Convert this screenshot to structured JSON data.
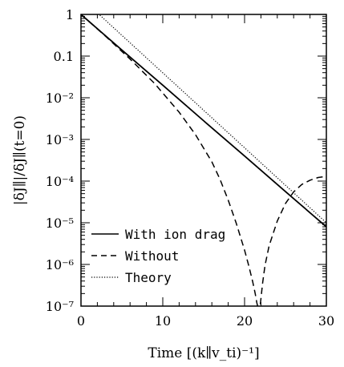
{
  "chart_data": {
    "type": "line",
    "xlabel": "Time [(k∥v_ti)⁻¹]",
    "ylabel": "|δJ∥|/δJ∥(t=0)",
    "yscale": "log",
    "xlim": [
      0,
      30
    ],
    "ylim": [
      1e-07,
      1
    ],
    "x_ticks": [
      "0",
      "10",
      "20",
      "30"
    ],
    "y_ticks": [
      "10⁻⁷",
      "10⁻⁶",
      "10⁻⁵",
      "10⁻⁴",
      "10⁻³",
      "10⁻²",
      "0.1",
      "1"
    ],
    "legend_position": "bottom-left",
    "series": [
      {
        "name": "With ion drag",
        "style": "solid",
        "x": [
          0,
          5,
          10,
          15,
          20,
          25,
          30
        ],
        "y": [
          1,
          0.14,
          0.02,
          0.0028,
          0.0004,
          5.6e-05,
          8e-06
        ]
      },
      {
        "name": "Without",
        "style": "dashed",
        "x": [
          0,
          3,
          6,
          9,
          12,
          14,
          16,
          17,
          18,
          19,
          20,
          20.5,
          21,
          21.3,
          21.5,
          21.6,
          21.7,
          21.75,
          21.8,
          21.85,
          21.9,
          22.0,
          22.2,
          22.5,
          23,
          24,
          25,
          26,
          27,
          28,
          29,
          30
        ],
        "y": [
          1,
          0.3,
          0.085,
          0.022,
          0.0045,
          0.0013,
          0.00029,
          0.00011,
          3.5e-05,
          9.5e-06,
          2.2e-06,
          9.5e-07,
          3.8e-07,
          2e-07,
          1.2e-07,
          1e-07,
          1e-07,
          1e-07,
          1e-07,
          1e-07,
          1e-07,
          1.5e-07,
          3.5e-07,
          9.5e-07,
          2.8e-06,
          1.1e-05,
          2.9e-05,
          5.5e-05,
          8.3e-05,
          0.000105,
          0.000122,
          0.00013
        ]
      },
      {
        "name": "Theory",
        "style": "dotted",
        "x": [
          0,
          30
        ],
        "y": [
          2.5,
          1e-05
        ]
      }
    ]
  }
}
